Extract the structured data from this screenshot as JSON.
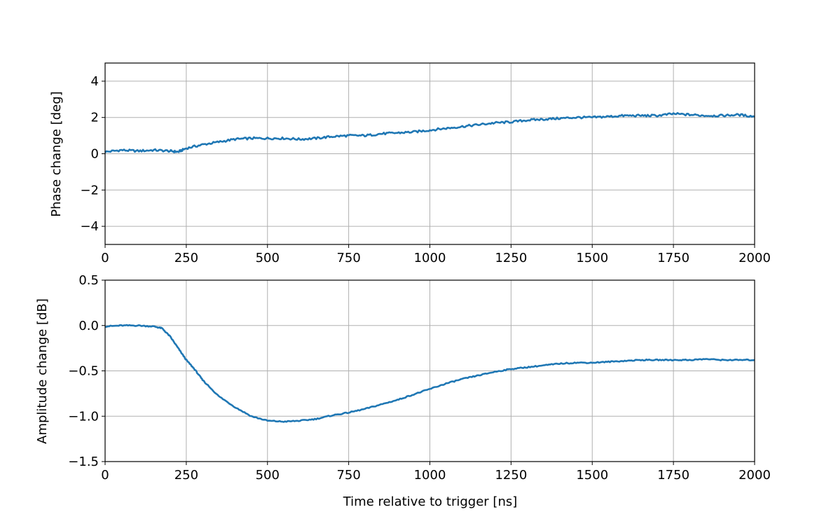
{
  "chart_data": [
    {
      "type": "line",
      "ylabel": "Phase change [deg]",
      "xlabel": "",
      "xlim": [
        0,
        2000
      ],
      "ylim": [
        -5,
        5
      ],
      "xticks": [
        0,
        250,
        500,
        750,
        1000,
        1250,
        1500,
        1750,
        2000
      ],
      "xtick_labels": [
        "0",
        "250",
        "500",
        "750",
        "1000",
        "1250",
        "1500",
        "1750",
        "2000"
      ],
      "yticks": [
        4,
        2,
        0,
        -2,
        -4
      ],
      "ytick_labels": [
        "4",
        "2",
        "0",
        "−2",
        "−4"
      ],
      "grid": true,
      "color": "#1f77b4",
      "series": [
        {
          "x": [
            0,
            50,
            100,
            150,
            200,
            225,
            250,
            300,
            350,
            400,
            450,
            500,
            550,
            600,
            650,
            700,
            750,
            800,
            850,
            900,
            950,
            1000,
            1050,
            1100,
            1150,
            1200,
            1250,
            1300,
            1350,
            1400,
            1450,
            1500,
            1550,
            1600,
            1650,
            1700,
            1750,
            1800,
            1850,
            1900,
            1950,
            2000
          ],
          "y": [
            0.1,
            0.2,
            0.15,
            0.2,
            0.15,
            0.1,
            0.3,
            0.5,
            0.65,
            0.8,
            0.85,
            0.85,
            0.85,
            0.8,
            0.85,
            0.95,
            1.0,
            1.0,
            1.1,
            1.15,
            1.2,
            1.3,
            1.4,
            1.5,
            1.6,
            1.7,
            1.75,
            1.85,
            1.9,
            1.95,
            2.0,
            2.0,
            2.05,
            2.1,
            2.1,
            2.1,
            2.2,
            2.15,
            2.1,
            2.1,
            2.15,
            2.05
          ],
          "noise": 0.06
        }
      ]
    },
    {
      "type": "line",
      "ylabel": "Amplitude change [dB]",
      "xlabel": "Time relative to trigger [ns]",
      "xlim": [
        0,
        2000
      ],
      "ylim": [
        -1.5,
        0.5
      ],
      "xticks": [
        0,
        250,
        500,
        750,
        1000,
        1250,
        1500,
        1750,
        2000
      ],
      "xtick_labels": [
        "0",
        "250",
        "500",
        "750",
        "1000",
        "1250",
        "1500",
        "1750",
        "2000"
      ],
      "yticks": [
        0.5,
        0.0,
        -0.5,
        -1.0,
        -1.5
      ],
      "ytick_labels": [
        "0.5",
        "0.0",
        "−0.5",
        "−1.0",
        "−1.5"
      ],
      "grid": true,
      "color": "#1f77b4",
      "series": [
        {
          "x": [
            0,
            50,
            100,
            150,
            175,
            200,
            225,
            250,
            275,
            300,
            350,
            400,
            450,
            500,
            550,
            600,
            650,
            700,
            750,
            800,
            850,
            900,
            950,
            1000,
            1050,
            1100,
            1150,
            1200,
            1250,
            1300,
            1350,
            1400,
            1450,
            1500,
            1550,
            1600,
            1650,
            1700,
            1750,
            1800,
            1850,
            1900,
            1950,
            2000
          ],
          "y": [
            -0.01,
            0.0,
            0.0,
            -0.01,
            -0.03,
            -0.12,
            -0.25,
            -0.38,
            -0.48,
            -0.6,
            -0.78,
            -0.9,
            -1.0,
            -1.05,
            -1.06,
            -1.05,
            -1.03,
            -0.99,
            -0.96,
            -0.92,
            -0.87,
            -0.82,
            -0.76,
            -0.7,
            -0.64,
            -0.59,
            -0.55,
            -0.51,
            -0.48,
            -0.46,
            -0.44,
            -0.42,
            -0.41,
            -0.41,
            -0.4,
            -0.39,
            -0.38,
            -0.38,
            -0.38,
            -0.38,
            -0.37,
            -0.38,
            -0.38,
            -0.38
          ],
          "noise": 0.006
        }
      ]
    }
  ]
}
